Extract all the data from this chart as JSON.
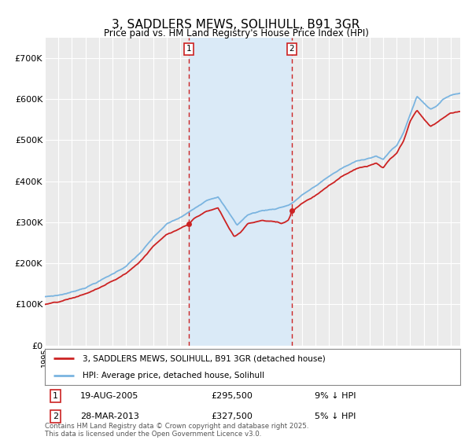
{
  "title": "3, SADDLERS MEWS, SOLIHULL, B91 3GR",
  "subtitle": "Price paid vs. HM Land Registry's House Price Index (HPI)",
  "background_color": "#ffffff",
  "plot_bg_color": "#ebebeb",
  "grid_color": "#ffffff",
  "hpi_line_color": "#7ab4e0",
  "price_line_color": "#cc2222",
  "highlight_fill": "#daeaf7",
  "legend_label_red": "3, SADDLERS MEWS, SOLIHULL, B91 3GR (detached house)",
  "legend_label_blue": "HPI: Average price, detached house, Solihull",
  "t1": 2005.63,
  "t2": 2013.24,
  "copyright": "Contains HM Land Registry data © Crown copyright and database right 2025.\nThis data is licensed under the Open Government Licence v3.0.",
  "ylim": [
    0,
    750000
  ],
  "xstart": 1995.0,
  "xend": 2025.7,
  "yticks": [
    0,
    100000,
    200000,
    300000,
    400000,
    500000,
    600000,
    700000
  ],
  "ytick_labels": [
    "£0",
    "£100K",
    "£200K",
    "£300K",
    "£400K",
    "£500K",
    "£600K",
    "£700K"
  ]
}
